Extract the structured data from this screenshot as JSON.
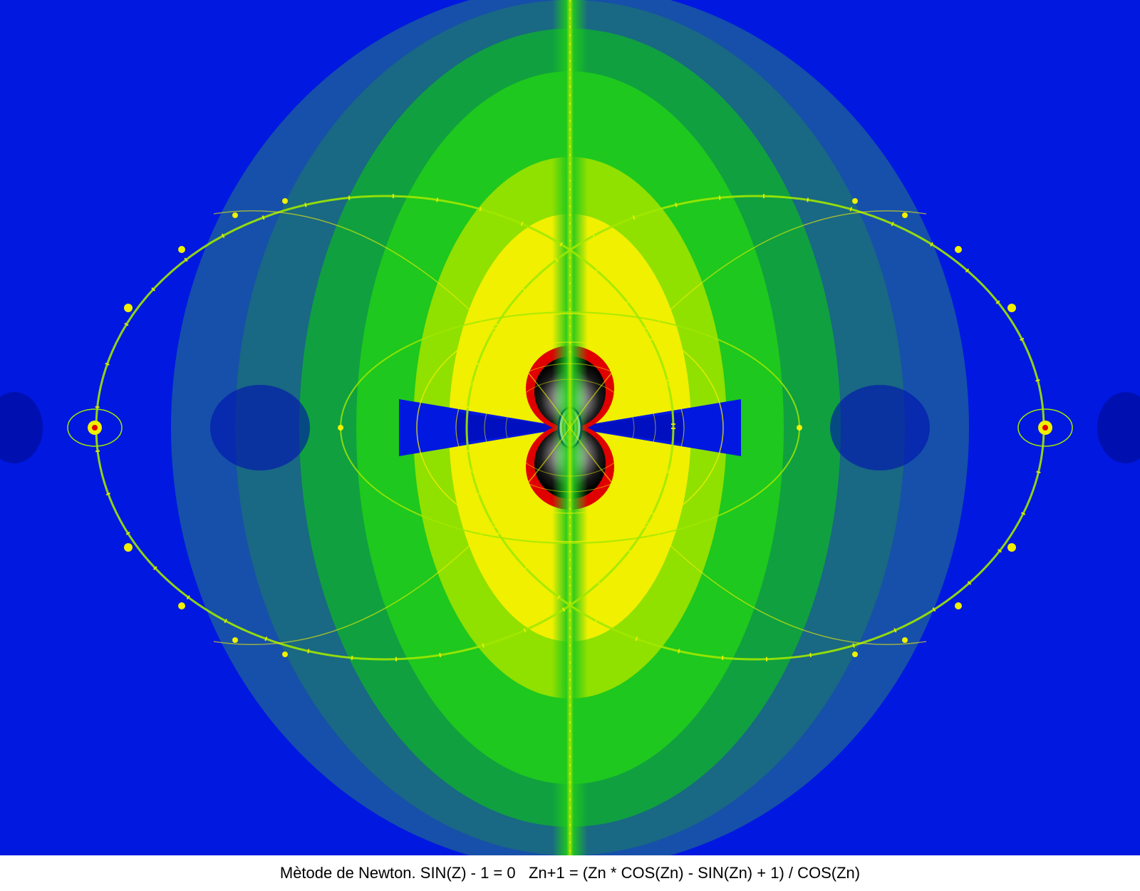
{
  "caption": "Mètode de Newton. SIN(Z) - 1 = 0   Zn+1 = (Zn * COS(Zn) - SIN(Zn) + 1) / COS(Zn)",
  "palette": {
    "background_blue": "#0018e0",
    "teal": "#1a6a80",
    "green": "#1ec81e",
    "yellow": "#f0f000",
    "red": "#e00000",
    "black": "#000000",
    "white": "#ffffff"
  }
}
